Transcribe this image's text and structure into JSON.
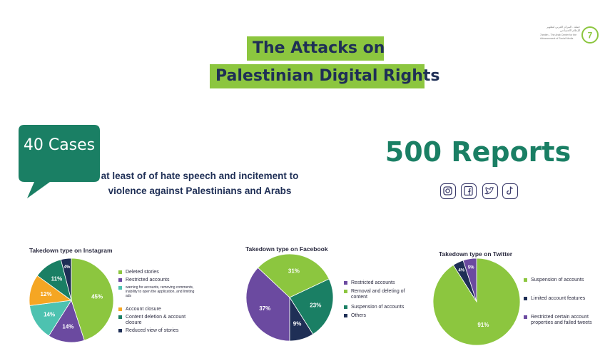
{
  "header": {
    "title_line1": "The Attacks on",
    "title_line2": "Palestinian Digital Rights",
    "logo": {
      "ar_text": "حملة - المركز العربي لتطوير الإعلام الاجتماعي",
      "en_text": "7amleh - The Arab Center for the Advancement of Social Media",
      "mark": "7",
      "color": "#8cc63f"
    }
  },
  "stats": {
    "cases": "40 Cases",
    "cases_description": "at least of of hate speech and incitement to violence against Palestinians and Arabs",
    "reports": "500 Reports"
  },
  "social_icons": [
    "instagram-icon",
    "facebook-icon",
    "twitter-icon",
    "tiktok-icon"
  ],
  "colors": {
    "green": "#8cc63f",
    "purple": "#6b4aa0",
    "teal": "#4dc2b0",
    "orange": "#f5a623",
    "dark_green": "#1a7f64",
    "navy": "#1f2f56",
    "title_bg": "#8cc63f"
  },
  "chart_data": [
    {
      "type": "pie",
      "title": "Takedown type on Instagram",
      "labels": [
        "Deleted stories",
        "Restricted accounts",
        "warning for accounts, removing comments, inability to open the application, and limiting ads",
        "Account closure",
        "Content deletion & account closure",
        "Reduced view of stories"
      ],
      "values": [
        45,
        14,
        14,
        12,
        11,
        4
      ],
      "value_labels": [
        "45%",
        "14%",
        "14%",
        "12%",
        "11%",
        "4%"
      ],
      "colors": [
        "#8cc63f",
        "#6b4aa0",
        "#4dc2b0",
        "#f5a623",
        "#1a7f64",
        "#1f2f56"
      ],
      "legend": "right"
    },
    {
      "type": "pie",
      "title": "Takedown type on Facebook",
      "labels": [
        "Restricted accounts",
        "Removal and deleting of content",
        "Suspension of accounts",
        "Others"
      ],
      "values": [
        37,
        31,
        23,
        9
      ],
      "value_labels": [
        "37%",
        "31%",
        "23%",
        "9%"
      ],
      "colors": [
        "#6b4aa0",
        "#8cc63f",
        "#1a7f64",
        "#1f2f56"
      ],
      "legend": "right"
    },
    {
      "type": "pie",
      "title": "Takedown type on Twitter",
      "labels": [
        "Suspension of accounts",
        "Limited account features",
        "Restricted certain account properties and failed tweets"
      ],
      "values": [
        91,
        4,
        5
      ],
      "value_labels": [
        "91%",
        "4%",
        "5%"
      ],
      "colors": [
        "#8cc63f",
        "#1f2f56",
        "#6b4aa0"
      ],
      "legend": "right"
    }
  ]
}
